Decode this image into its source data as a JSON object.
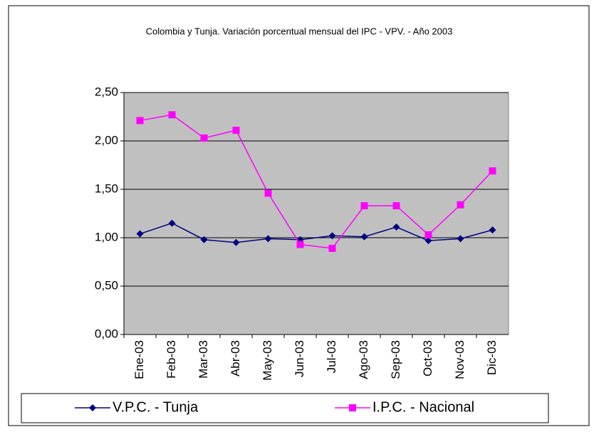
{
  "chart_data": {
    "type": "line",
    "title": "Colombia y Tunja. Variación porcentual mensual del IPC - VPV. - Año  2003",
    "categories": [
      "Ene-03",
      "Feb-03",
      "Mar-03",
      "Abr-03",
      "May-03",
      "Jun-03",
      "Jul-03",
      "Ago-03",
      "Sep-03",
      "Oct-03",
      "Nov-03",
      "Dic-03"
    ],
    "series": [
      {
        "name": "V.P.C. - Tunja",
        "color": "#000080",
        "marker": "diamond",
        "values": [
          1.04,
          1.15,
          0.98,
          0.95,
          0.99,
          0.98,
          1.02,
          1.01,
          1.11,
          0.97,
          0.99,
          1.08
        ]
      },
      {
        "name": "I.P.C. - Nacional",
        "color": "#ff00ff",
        "marker": "square",
        "values": [
          2.21,
          2.27,
          2.03,
          2.11,
          1.46,
          0.93,
          0.89,
          1.33,
          1.33,
          1.03,
          1.34,
          1.69
        ]
      }
    ],
    "ylim": [
      0,
      2.5
    ],
    "yticks": [
      {
        "value": 0,
        "label": "0,00"
      },
      {
        "value": 0.5,
        "label": "0,50"
      },
      {
        "value": 1,
        "label": "1,00"
      },
      {
        "value": 1.5,
        "label": "1,50"
      },
      {
        "value": 2,
        "label": "2,00"
      },
      {
        "value": 2.5,
        "label": "2,50"
      }
    ],
    "grid": true,
    "legend": "bottom",
    "plot_background": "#c0c0c0"
  }
}
